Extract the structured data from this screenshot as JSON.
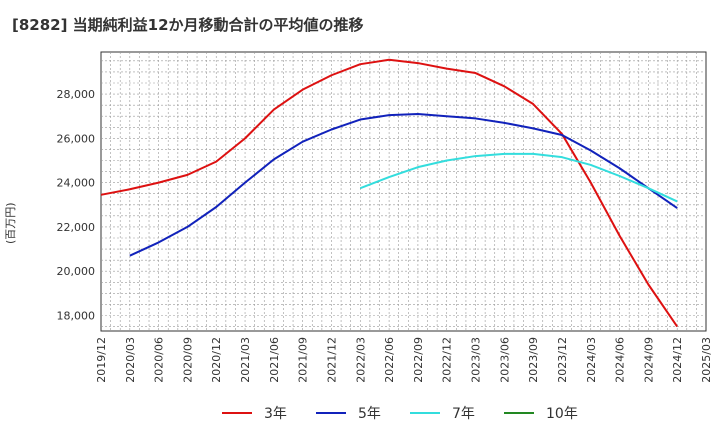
{
  "title": "[8282]  当期純利益12か月移動合計の平均値の推移",
  "chart_data": {
    "type": "line",
    "title": "[8282]  当期純利益12か月移動合計の平均値の推移",
    "ylabel": "(百万円)",
    "xlabel": "",
    "ylim": [
      17300,
      29900
    ],
    "yticks": [
      18000,
      20000,
      22000,
      24000,
      26000,
      28000
    ],
    "ytick_labels": [
      "18,000",
      "20,000",
      "22,000",
      "24,000",
      "26,000",
      "28,000"
    ],
    "xticks": [
      "2019/12",
      "2020/03",
      "2020/06",
      "2020/09",
      "2020/12",
      "2021/03",
      "2021/06",
      "2021/09",
      "2021/12",
      "2022/03",
      "2022/06",
      "2022/09",
      "2022/12",
      "2023/03",
      "2023/06",
      "2023/09",
      "2023/12",
      "2024/03",
      "2024/06",
      "2024/09",
      "2024/12",
      "2025/03"
    ],
    "grid": true,
    "legend_position": "bottom",
    "series": [
      {
        "name": "3年",
        "color": "#dd1111",
        "x": [
          "2019/12",
          "2020/03",
          "2020/06",
          "2020/09",
          "2020/12",
          "2021/03",
          "2021/06",
          "2021/09",
          "2021/12",
          "2022/03",
          "2022/06",
          "2022/09",
          "2022/12",
          "2023/03",
          "2023/06",
          "2023/09",
          "2023/12",
          "2024/03",
          "2024/06",
          "2024/09",
          "2024/12"
        ],
        "values": [
          23450,
          23700,
          24000,
          24350,
          24950,
          26000,
          27300,
          28200,
          28850,
          29350,
          29550,
          29400,
          29150,
          28950,
          28350,
          27550,
          26200,
          24000,
          21600,
          19400,
          17500
        ]
      },
      {
        "name": "5年",
        "color": "#1122bb",
        "x": [
          "2020/03",
          "2020/06",
          "2020/09",
          "2020/12",
          "2021/03",
          "2021/06",
          "2021/09",
          "2021/12",
          "2022/03",
          "2022/06",
          "2022/09",
          "2022/12",
          "2023/03",
          "2023/06",
          "2023/09",
          "2023/12",
          "2024/03",
          "2024/06",
          "2024/09",
          "2024/12"
        ],
        "values": [
          20700,
          21300,
          22000,
          22900,
          24000,
          25050,
          25850,
          26400,
          26850,
          27050,
          27100,
          27000,
          26900,
          26700,
          26450,
          26150,
          25450,
          24650,
          23750,
          22850
        ]
      },
      {
        "name": "7年",
        "color": "#33dddd",
        "x": [
          "2022/03",
          "2022/06",
          "2022/09",
          "2022/12",
          "2023/03",
          "2023/06",
          "2023/09",
          "2023/12",
          "2024/03",
          "2024/06",
          "2024/09",
          "2024/12"
        ],
        "values": [
          23750,
          24250,
          24700,
          25000,
          25200,
          25300,
          25300,
          25150,
          24800,
          24300,
          23750,
          23150
        ]
      },
      {
        "name": "10年",
        "color": "#228822",
        "x": [],
        "values": []
      }
    ]
  }
}
